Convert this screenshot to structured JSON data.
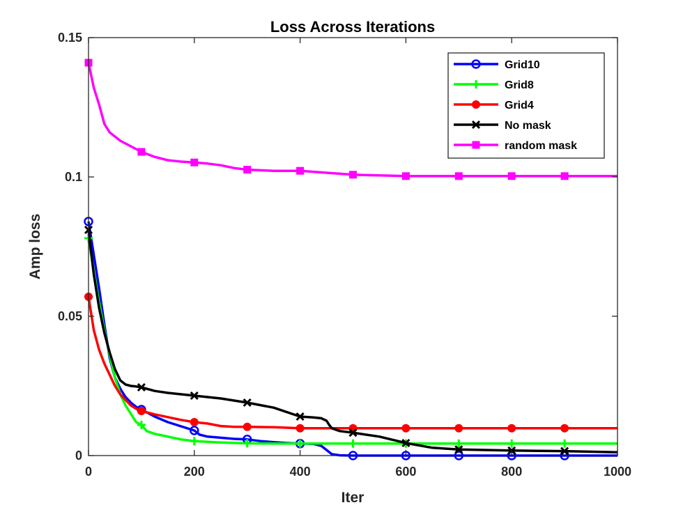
{
  "chart_data": {
    "type": "line",
    "title": "Loss Across Iterations",
    "xlabel": "Iter",
    "ylabel": "Amp loss",
    "xlim": [
      0,
      1000
    ],
    "ylim": [
      0,
      0.15
    ],
    "xticks": [
      "0",
      "200",
      "400",
      "600",
      "800",
      "1000"
    ],
    "yticks": [
      "0",
      "0.05",
      "0.1",
      "0.15"
    ],
    "grid": false,
    "legend_position": "top-right",
    "series": [
      {
        "name": "Grid10",
        "color": "#0000ff",
        "marker": "circle",
        "x": [
          0,
          10,
          20,
          30,
          40,
          50,
          60,
          70,
          80,
          90,
          100,
          125,
          150,
          175,
          200,
          210,
          225,
          250,
          275,
          300,
          325,
          350,
          375,
          400,
          425,
          440,
          450,
          460,
          475,
          500,
          600,
          700,
          800,
          900,
          1000
        ],
        "y": [
          0.084,
          0.072,
          0.06,
          0.047,
          0.035,
          0.028,
          0.024,
          0.021,
          0.019,
          0.0175,
          0.0165,
          0.014,
          0.012,
          0.0105,
          0.009,
          0.0075,
          0.0068,
          0.0064,
          0.006,
          0.0058,
          0.0052,
          0.0048,
          0.0045,
          0.0043,
          0.0042,
          0.0035,
          0.002,
          0.0005,
          0.0001,
          0.0,
          0.0,
          0.0,
          0.0,
          0.0,
          0.0
        ]
      },
      {
        "name": "Grid8",
        "color": "#00ff00",
        "marker": "plus",
        "x": [
          0,
          10,
          20,
          30,
          40,
          50,
          60,
          70,
          80,
          90,
          100,
          110,
          125,
          150,
          175,
          200,
          250,
          300,
          350,
          400,
          450,
          500,
          600,
          700,
          800,
          900,
          1000
        ],
        "y": [
          0.078,
          0.066,
          0.055,
          0.045,
          0.036,
          0.028,
          0.022,
          0.018,
          0.015,
          0.012,
          0.011,
          0.0088,
          0.0078,
          0.0068,
          0.0058,
          0.0052,
          0.0047,
          0.0044,
          0.0043,
          0.0043,
          0.0043,
          0.0043,
          0.0043,
          0.0043,
          0.0043,
          0.0043,
          0.0043
        ]
      },
      {
        "name": "Grid4",
        "color": "#ff0000",
        "marker": "filled-circle",
        "x": [
          0,
          10,
          20,
          30,
          40,
          50,
          60,
          70,
          80,
          90,
          100,
          125,
          150,
          175,
          200,
          225,
          250,
          275,
          300,
          350,
          400,
          500,
          600,
          700,
          800,
          900,
          1000
        ],
        "y": [
          0.057,
          0.045,
          0.038,
          0.033,
          0.029,
          0.025,
          0.022,
          0.02,
          0.018,
          0.0168,
          0.016,
          0.0148,
          0.0138,
          0.0128,
          0.012,
          0.0115,
          0.0106,
          0.0103,
          0.0103,
          0.0102,
          0.0098,
          0.0098,
          0.0098,
          0.0098,
          0.0098,
          0.0098,
          0.0098
        ]
      },
      {
        "name": "No mask",
        "color": "#000000",
        "marker": "x",
        "x": [
          0,
          10,
          20,
          30,
          40,
          50,
          60,
          70,
          80,
          90,
          100,
          125,
          150,
          175,
          200,
          250,
          300,
          350,
          400,
          425,
          440,
          450,
          455,
          460,
          475,
          500,
          550,
          600,
          650,
          700,
          800,
          900,
          1000
        ],
        "y": [
          0.081,
          0.065,
          0.053,
          0.044,
          0.037,
          0.031,
          0.027,
          0.0255,
          0.025,
          0.0248,
          0.0245,
          0.0232,
          0.0225,
          0.022,
          0.0215,
          0.0205,
          0.019,
          0.0172,
          0.014,
          0.0137,
          0.0134,
          0.0125,
          0.011,
          0.0098,
          0.0088,
          0.0082,
          0.0068,
          0.0045,
          0.0028,
          0.0022,
          0.0018,
          0.0016,
          0.0012
        ]
      },
      {
        "name": "random mask",
        "color": "#ff00ff",
        "marker": "square",
        "x": [
          0,
          10,
          20,
          30,
          40,
          50,
          60,
          75,
          100,
          125,
          150,
          175,
          200,
          225,
          250,
          275,
          300,
          350,
          400,
          450,
          500,
          600,
          700,
          800,
          900,
          1000
        ],
        "y": [
          0.141,
          0.132,
          0.126,
          0.119,
          0.116,
          0.1145,
          0.113,
          0.1115,
          0.109,
          0.1072,
          0.106,
          0.1055,
          0.1052,
          0.1048,
          0.1042,
          0.1032,
          0.1026,
          0.1022,
          0.1022,
          0.1015,
          0.1008,
          0.1003,
          0.1003,
          0.1003,
          0.1003,
          0.1003
        ]
      }
    ]
  }
}
